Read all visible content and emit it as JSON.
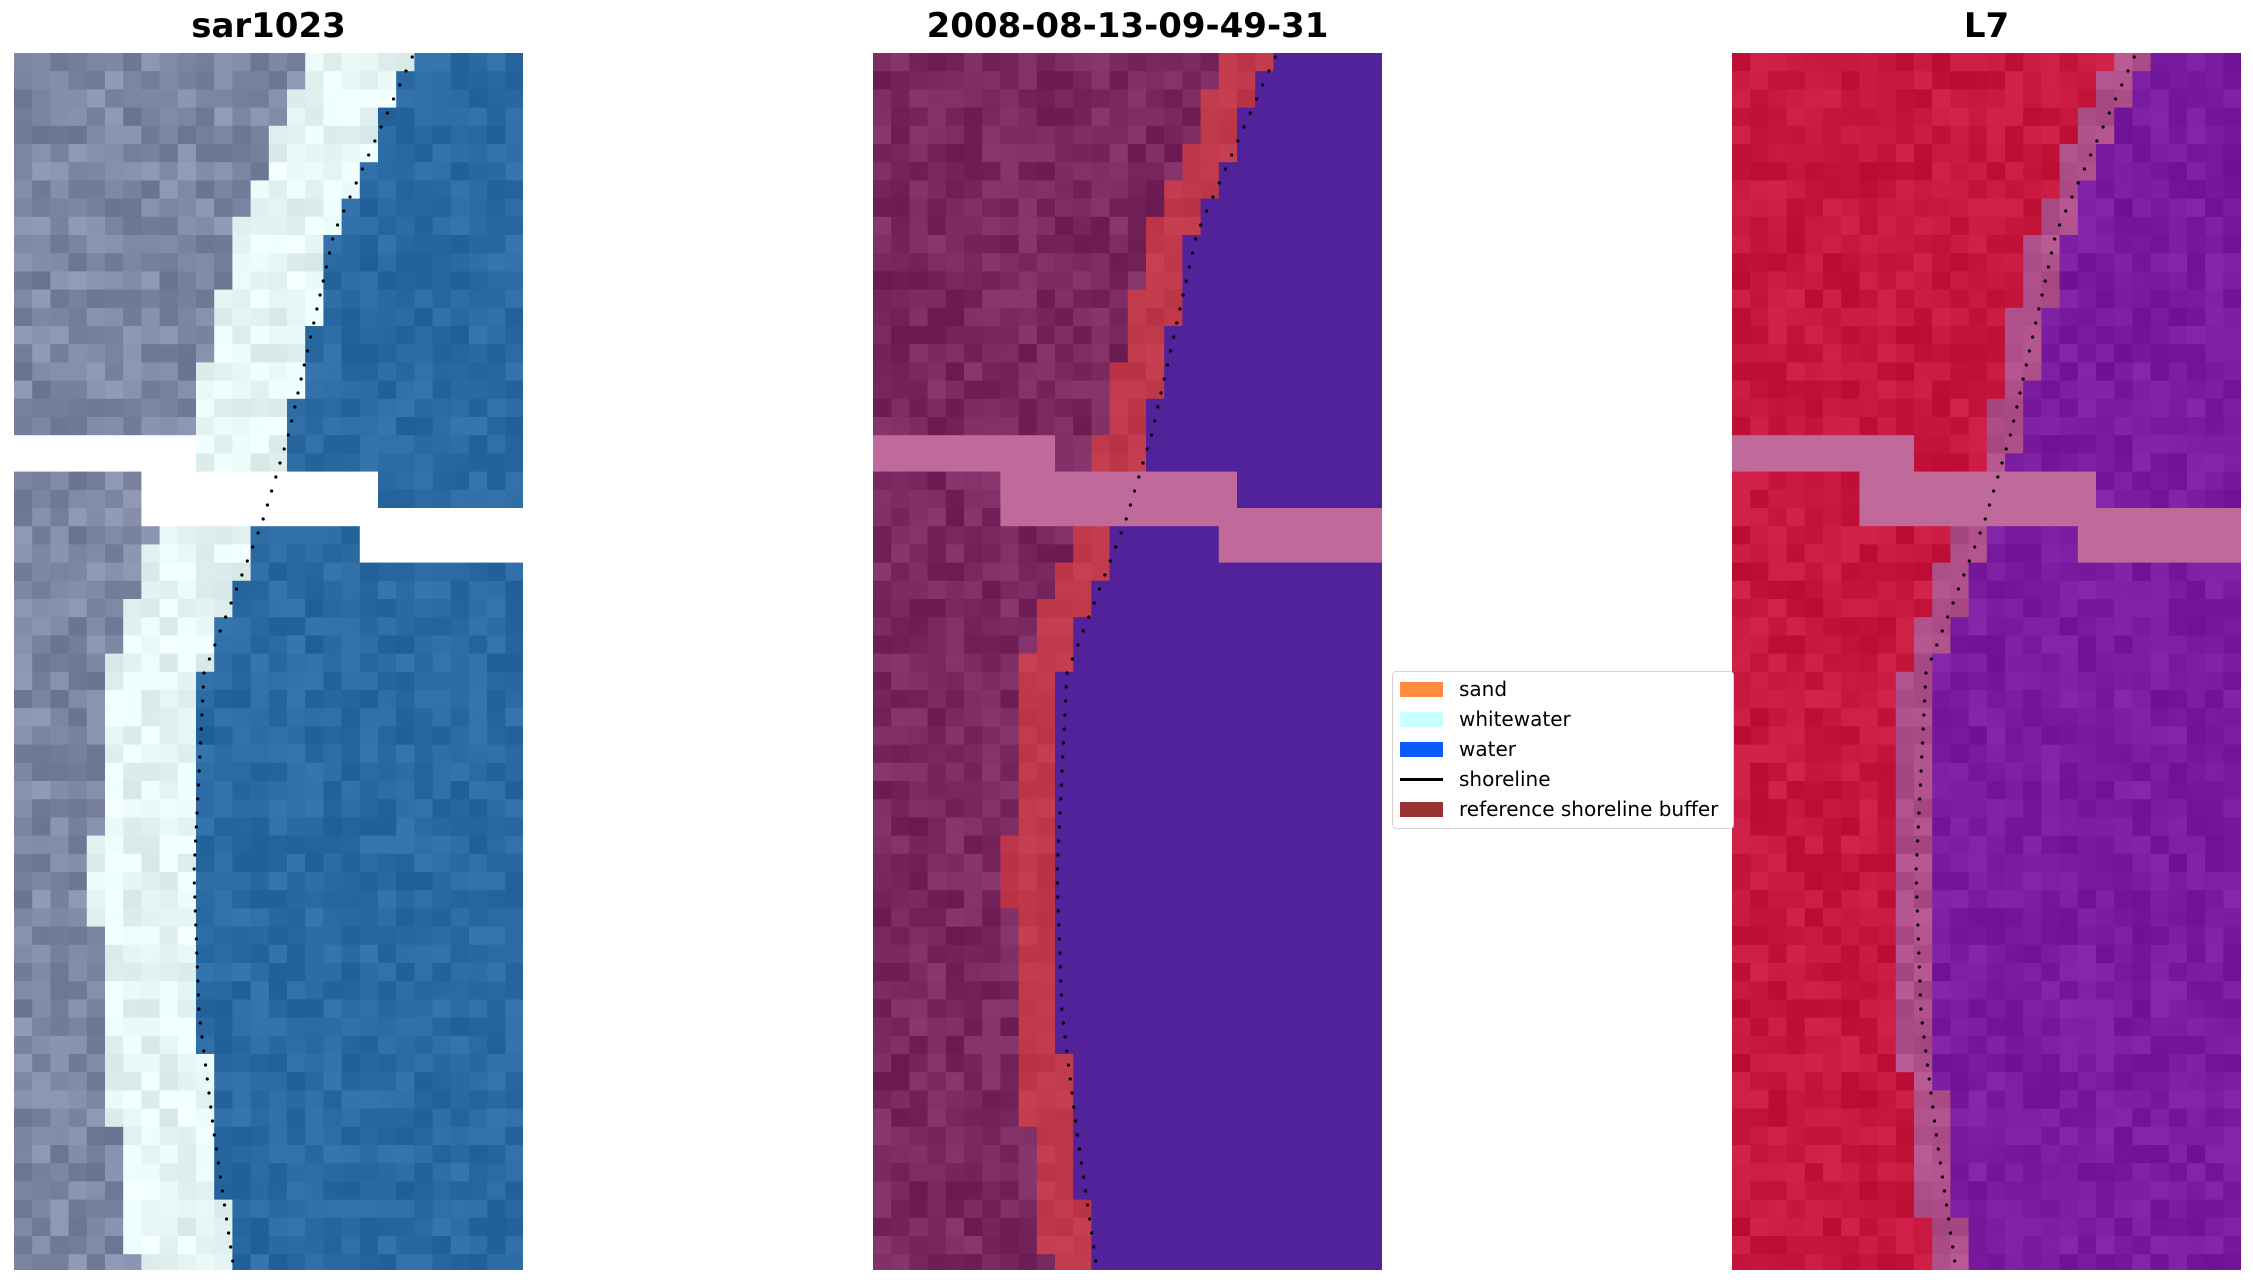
{
  "panels": [
    {
      "title": "sar1023",
      "palette": "rgb"
    },
    {
      "title": "2008-08-13-09-49-31",
      "palette": "classified"
    },
    {
      "title": "L7",
      "palette": "false-color"
    }
  ],
  "legend": {
    "items": [
      {
        "label": "sand",
        "color": "#ff8c3f",
        "kind": "patch"
      },
      {
        "label": "whitewater",
        "color": "#c8ffff",
        "kind": "patch"
      },
      {
        "label": "water",
        "color": "#0a5cff",
        "kind": "patch"
      },
      {
        "label": "shoreline",
        "color": "#000000",
        "kind": "line"
      },
      {
        "label": "reference shoreline buffer",
        "color": "#993333",
        "kind": "patch"
      }
    ]
  },
  "colors": {
    "land_rgb": "#7e88a4",
    "water_rgb": "#2b6aa3",
    "surf_rgb": "#e6f7f6",
    "land_classified": "#7a2860",
    "water_classified": "#52229a",
    "buffer_classified": "#c0394b",
    "cloud_mask": "#bf6a9a",
    "land_l7": "#c8173f",
    "water_l7": "#7a1c9f"
  }
}
